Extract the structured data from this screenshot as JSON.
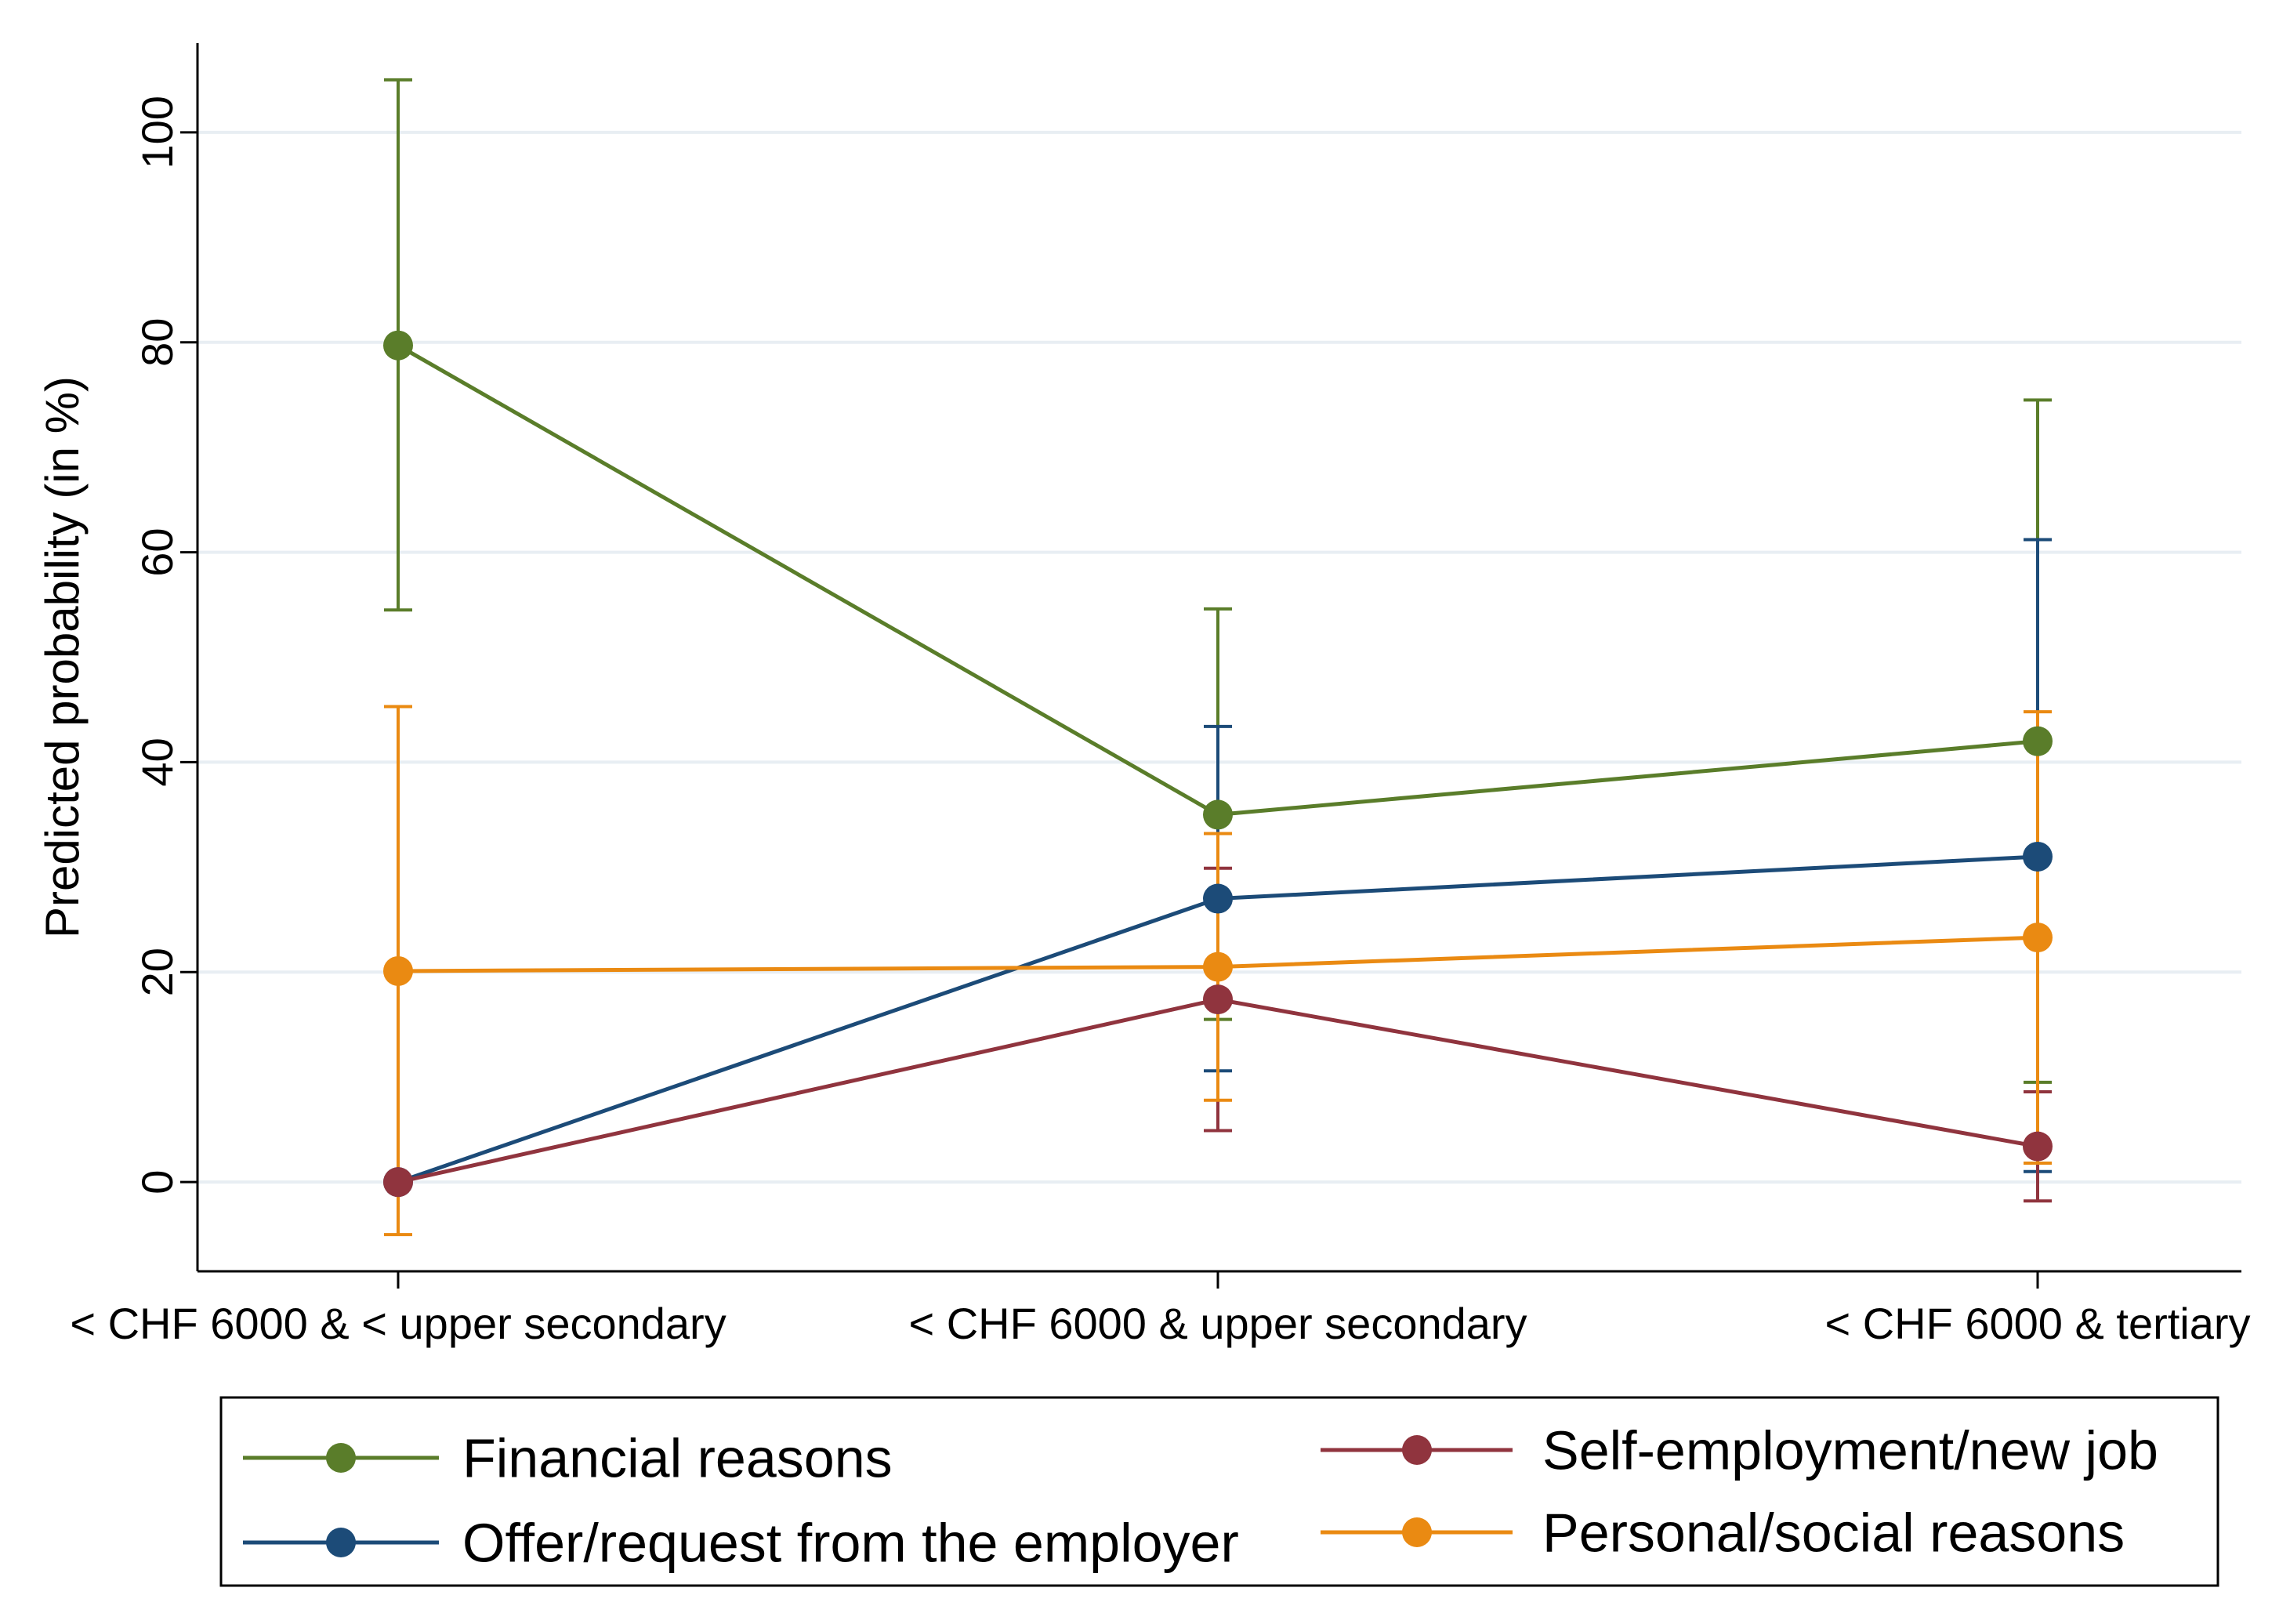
{
  "chart_data": {
    "type": "line",
    "title": "",
    "xlabel": "",
    "ylabel": "Predicted probability (in %)",
    "categories": [
      "< CHF 6000 & < upper secondary",
      "< CHF 6000 & upper secondary",
      "< CHF 6000 & tertiary"
    ],
    "ylim": [
      -8.5,
      108.5
    ],
    "yticks": [
      0,
      20,
      40,
      60,
      80,
      100
    ],
    "grid": true,
    "legend_position": "bottom",
    "series": [
      {
        "name": "Financial reasons",
        "color": "#5a7d2a",
        "values": [
          79.7,
          35.0,
          42.0
        ],
        "ci_low": [
          54.5,
          15.5,
          9.5
        ],
        "ci_high": [
          105.0,
          54.6,
          74.5
        ]
      },
      {
        "name": "Offer/request from the employer",
        "color": "#1c4b78",
        "values": [
          0,
          27.0,
          31.0
        ],
        "ci_low": [
          null,
          10.6,
          1.0
        ],
        "ci_high": [
          null,
          43.4,
          61.2
        ]
      },
      {
        "name": "Self-employment/new job",
        "color": "#90343e",
        "values": [
          0,
          17.4,
          3.4
        ],
        "ci_low": [
          null,
          4.9,
          -1.8
        ],
        "ci_high": [
          null,
          29.9,
          8.6
        ]
      },
      {
        "name": "Personal/social reasons",
        "color": "#ea8a12",
        "values": [
          20.1,
          20.5,
          23.3
        ],
        "ci_low": [
          -5.0,
          7.8,
          1.8
        ],
        "ci_high": [
          45.3,
          33.2,
          44.8
        ]
      }
    ]
  }
}
